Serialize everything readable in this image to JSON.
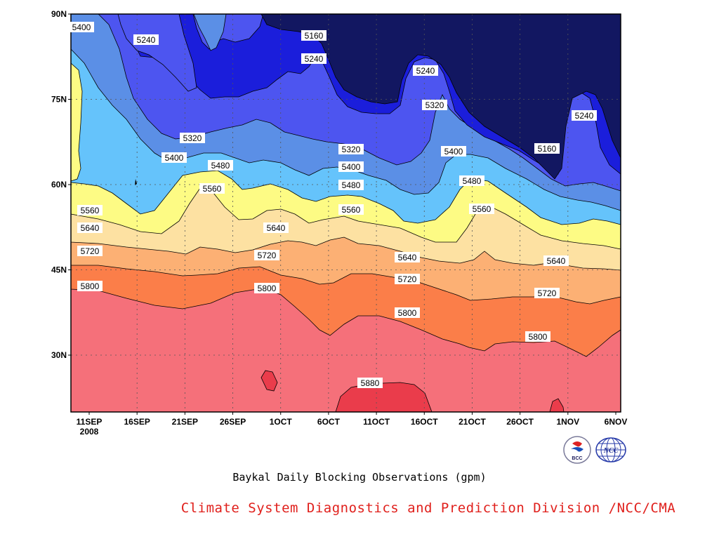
{
  "chart_data": {
    "type": "contour",
    "title": "",
    "x_axis": {
      "ticks": [
        "11SEP",
        "16SEP",
        "21SEP",
        "26SEP",
        "1OCT",
        "6OCT",
        "11OCT",
        "16OCT",
        "21OCT",
        "26OCT",
        "1NOV",
        "6NOV"
      ],
      "year_label": "2008"
    },
    "y_axis": {
      "ticks": [
        "90N",
        "75N",
        "60N",
        "45N",
        "30N"
      ],
      "range": [
        20,
        90
      ]
    },
    "levels": [
      5160,
      5240,
      5320,
      5400,
      5480,
      5560,
      5640,
      5720,
      5800,
      5880
    ],
    "fill_colors": {
      "below_5160": "#121761",
      "5160_5240": "#1b1edb",
      "5240_5320": "#4d55f0",
      "5320_5400": "#5b8fe6",
      "5400_5480": "#65c3fb",
      "5480_5560": "#fdfb84",
      "5560_5640": "#fde1a2",
      "5640_5720": "#fcb074",
      "5720_5800": "#fb7e49",
      "5800_5880": "#f5707a",
      "above_5880": "#ea3c4b"
    },
    "contour_labels": [
      "5400",
      "5240",
      "5160",
      "5240",
      "5240",
      "5320",
      "5320",
      "5400",
      "5320",
      "5400",
      "5400",
      "5160",
      "5240",
      "5480",
      "5560",
      "5480",
      "5480",
      "5560",
      "5560",
      "5560",
      "5640",
      "5640",
      "5640",
      "5640",
      "5720",
      "5720",
      "5720",
      "5720",
      "5800",
      "5800",
      "5800",
      "5800",
      "5880"
    ]
  },
  "caption": "Baykal Daily Blocking Observations (gpm)",
  "credit": "Climate System Diagnostics and Prediction Division /NCC/CMA",
  "logos": [
    "bcc-logo",
    "ncc-logo"
  ]
}
